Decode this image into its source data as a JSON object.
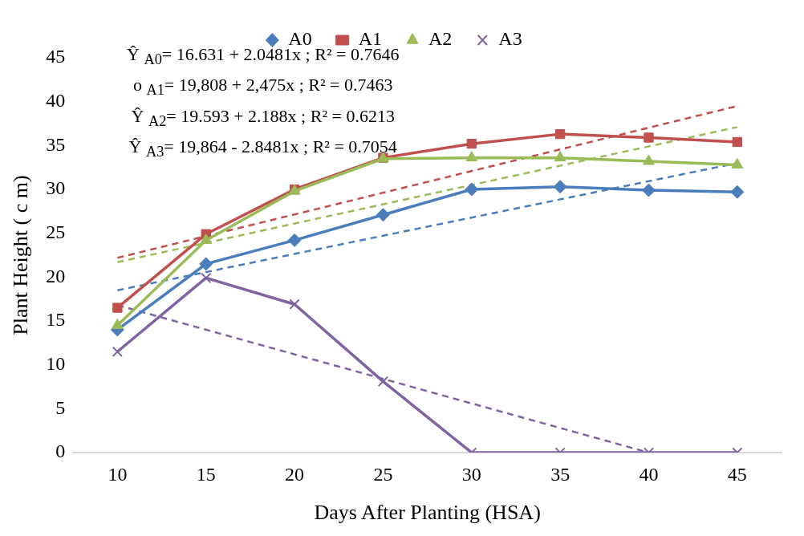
{
  "chart_data": {
    "type": "line",
    "xlabel": "Days After Planting (HSA)",
    "ylabel": "Plant Height ( c m)",
    "x": [
      10,
      15,
      20,
      25,
      30,
      35,
      40,
      45
    ],
    "xlim": [
      7.5,
      47.5
    ],
    "xticks": [
      10,
      15,
      20,
      25,
      30,
      35,
      40,
      45
    ],
    "ylim": [
      0,
      45
    ],
    "yticks": [
      0,
      5,
      10,
      15,
      20,
      25,
      30,
      35,
      40,
      45
    ],
    "grid": false,
    "legend": "top",
    "line_style": "solid",
    "series": [
      {
        "name": "A0",
        "color": "#4a7ebb",
        "marker": "diamond",
        "values": [
          14.0,
          21.5,
          24.2,
          27.1,
          30.0,
          30.3,
          29.9,
          29.7
        ]
      },
      {
        "name": "A1",
        "color": "#c0504d",
        "marker": "square",
        "values": [
          16.5,
          24.9,
          30.0,
          33.6,
          35.2,
          36.3,
          35.9,
          35.4
        ]
      },
      {
        "name": "A2",
        "color": "#9bbb59",
        "marker": "triangle",
        "values": [
          14.5,
          24.2,
          29.8,
          33.5,
          33.6,
          33.6,
          33.2,
          32.8
        ]
      },
      {
        "name": "A3",
        "color": "#8064a2",
        "marker": "cross",
        "values": [
          11.5,
          19.9,
          16.9,
          8.1,
          0,
          0,
          0,
          0
        ]
      },
      {
        "type": "line",
        "color": "#4a7ebb",
        "line_style": "dashed",
        "marker": "none",
        "x": [
          10,
          45
        ],
        "values": [
          18.5,
          33.0
        ]
      },
      {
        "type": "line",
        "color": "#c0504d",
        "line_style": "dashed",
        "marker": "none",
        "x": [
          10,
          45
        ],
        "values": [
          22.2,
          39.5
        ]
      },
      {
        "type": "line",
        "color": "#9bbb59",
        "line_style": "dashed",
        "marker": "none",
        "x": [
          10,
          45
        ],
        "values": [
          21.7,
          37.1
        ]
      },
      {
        "type": "line",
        "color": "#8064a2",
        "line_style": "dashed",
        "marker": "none",
        "x": [
          10,
          40
        ],
        "values": [
          16.8,
          0
        ]
      }
    ],
    "annotations": [
      "Ŷ $_{A0}$= 16.631 + 2.0481x ; R² = 0.7646",
      "o $_{A1}$= 19,808 + 2,475x ; R² = 0.7463",
      "Ŷ $_{A2}$= 19.593 + 2.188x ; R² = 0.6213",
      "Ŷ $_{A3}$= 19,864 - 2.8481x ; R² = 0.7054"
    ]
  }
}
